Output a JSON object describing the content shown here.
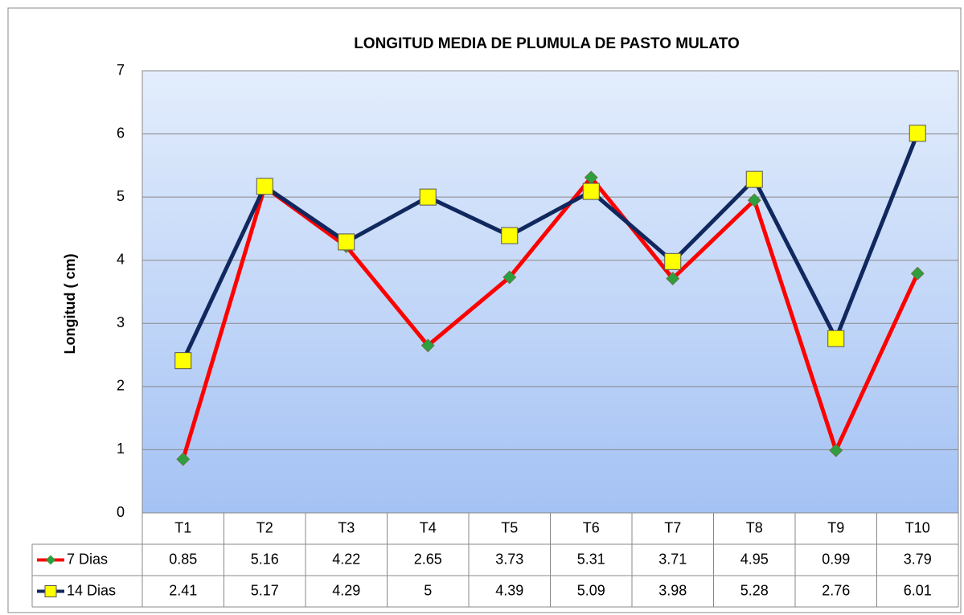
{
  "chart_data": {
    "type": "line",
    "title": "LONGITUD MEDIA DE PLUMULA DE PASTO MULATO",
    "y_label": "Longitud ( cm)",
    "categories": [
      "T1",
      "T2",
      "T3",
      "T4",
      "T5",
      "T6",
      "T7",
      "T8",
      "T9",
      "T10"
    ],
    "series": [
      {
        "name": "7 Dias",
        "color": "#ff0000",
        "marker_color": "#2e9e3e",
        "values": [
          0.85,
          5.16,
          4.22,
          2.65,
          3.73,
          5.31,
          3.71,
          4.95,
          0.99,
          3.79
        ]
      },
      {
        "name": "14 Dias",
        "color": "#10285e",
        "marker_color": "#ffff00",
        "values": [
          2.41,
          5.17,
          4.29,
          5,
          4.39,
          5.09,
          3.98,
          5.28,
          2.76,
          6.01
        ]
      }
    ],
    "ylim": [
      0,
      7
    ],
    "yticks": [
      0,
      1,
      2,
      3,
      4,
      5,
      6,
      7
    ],
    "grid": true
  }
}
